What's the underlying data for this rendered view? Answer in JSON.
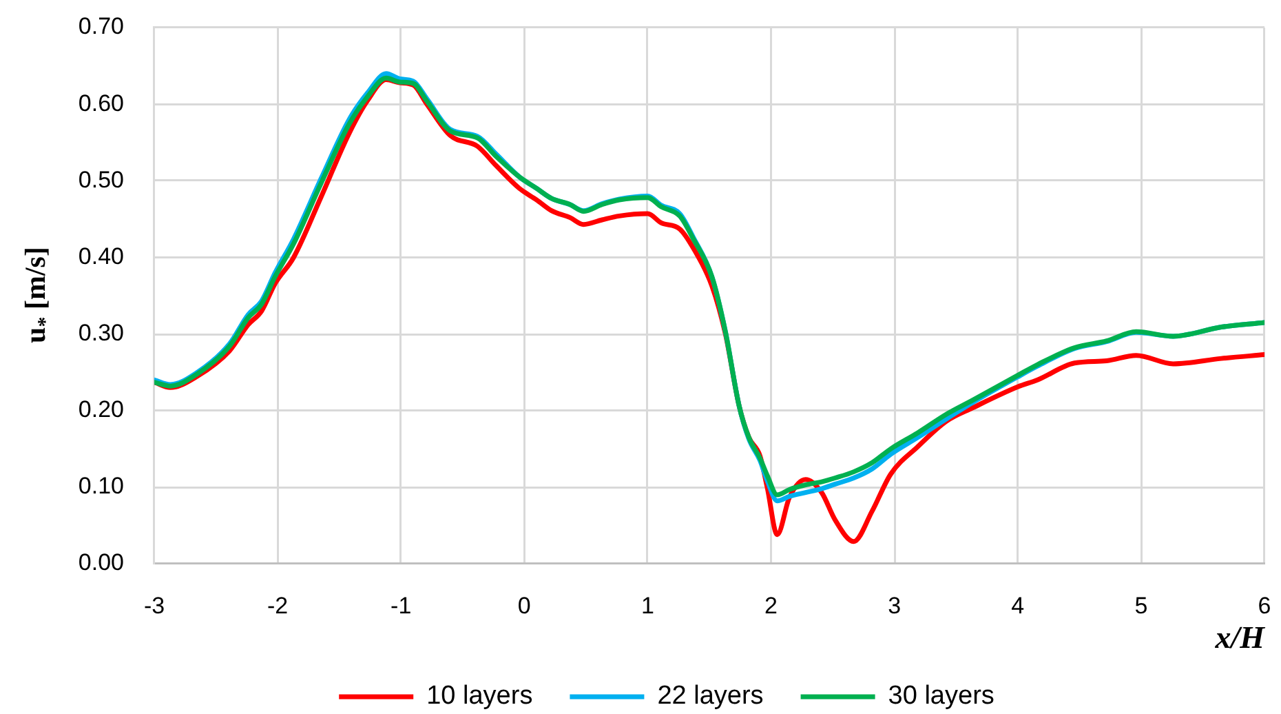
{
  "chart_data": {
    "type": "line",
    "xlabel": "x/H",
    "ylabel": "u$_{*}$ [m/s]",
    "x": [
      -3,
      -2.87,
      -2.65,
      -2.39,
      -2.24,
      -2.13,
      -2.02,
      -1.87,
      -1.65,
      -1.42,
      -1.27,
      -1.12,
      -1.01,
      -0.9,
      -0.79,
      -0.6,
      -0.38,
      -0.23,
      -0.04,
      0.1,
      0.22,
      0.37,
      0.48,
      0.63,
      0.77,
      1.0,
      1.11,
      1.26,
      1.37,
      1.52,
      1.63,
      1.74,
      1.82,
      1.91,
      1.97,
      2.05,
      2.15,
      2.28,
      2.41,
      2.52,
      2.67,
      2.82,
      2.97,
      3.19,
      3.42,
      3.64,
      4.0,
      4.16,
      4.46,
      4.72,
      4.96,
      5.26,
      5.65,
      6.0
    ],
    "series": [
      {
        "name": "10 layers",
        "color": "#ff0000",
        "values": [
          0.237,
          0.23,
          0.245,
          0.278,
          0.312,
          0.33,
          0.366,
          0.4,
          0.478,
          0.562,
          0.605,
          0.632,
          0.628,
          0.625,
          0.6,
          0.559,
          0.545,
          0.52,
          0.49,
          0.475,
          0.461,
          0.452,
          0.443,
          0.449,
          0.454,
          0.457,
          0.445,
          0.437,
          0.412,
          0.363,
          0.3,
          0.207,
          0.165,
          0.141,
          0.099,
          0.038,
          0.087,
          0.11,
          0.093,
          0.057,
          0.029,
          0.069,
          0.117,
          0.153,
          0.186,
          0.204,
          0.231,
          0.24,
          0.262,
          0.265,
          0.272,
          0.261,
          0.268,
          0.273
        ]
      },
      {
        "name": "22 layers",
        "color": "#00b0f0",
        "values": [
          0.24,
          0.234,
          0.25,
          0.287,
          0.325,
          0.343,
          0.38,
          0.424,
          0.502,
          0.58,
          0.615,
          0.64,
          0.633,
          0.63,
          0.607,
          0.567,
          0.558,
          0.535,
          0.505,
          0.49,
          0.477,
          0.469,
          0.461,
          0.47,
          0.476,
          0.48,
          0.468,
          0.457,
          0.426,
          0.375,
          0.303,
          0.207,
          0.163,
          0.135,
          0.108,
          0.082,
          0.088,
          0.093,
          0.098,
          0.104,
          0.112,
          0.124,
          0.143,
          0.165,
          0.189,
          0.211,
          0.244,
          0.258,
          0.281,
          0.29,
          0.302,
          0.297,
          0.309,
          0.315
        ]
      },
      {
        "name": "30 layers",
        "color": "#00b050",
        "values": [
          0.237,
          0.232,
          0.248,
          0.284,
          0.321,
          0.339,
          0.375,
          0.418,
          0.496,
          0.574,
          0.61,
          0.634,
          0.629,
          0.627,
          0.604,
          0.565,
          0.556,
          0.532,
          0.505,
          0.49,
          0.477,
          0.469,
          0.46,
          0.469,
          0.475,
          0.478,
          0.466,
          0.454,
          0.424,
          0.375,
          0.303,
          0.207,
          0.165,
          0.138,
          0.115,
          0.09,
          0.097,
          0.103,
          0.107,
          0.112,
          0.12,
          0.132,
          0.15,
          0.171,
          0.195,
          0.214,
          0.246,
          0.26,
          0.282,
          0.291,
          0.303,
          0.297,
          0.309,
          0.315
        ]
      }
    ],
    "xlim": [
      -3,
      6
    ],
    "xticks": [
      -3,
      -2,
      -1,
      0,
      1,
      2,
      3,
      4,
      5,
      6
    ],
    "ylim": [
      0,
      0.7
    ],
    "yticks": [
      {
        "value": 0,
        "label": "0.00"
      },
      {
        "value": 0.1,
        "label": "0.10"
      },
      {
        "value": 0.2,
        "label": "0.20"
      },
      {
        "value": 0.3,
        "label": "0.30"
      },
      {
        "value": 0.4,
        "label": "0.40"
      },
      {
        "value": 0.5,
        "label": "0.50"
      },
      {
        "value": 0.6,
        "label": "0.60"
      },
      {
        "value": 0.7,
        "label": "0.70"
      }
    ],
    "grid": true,
    "legend": "bottom",
    "marker": "none",
    "line_style": "solid"
  }
}
